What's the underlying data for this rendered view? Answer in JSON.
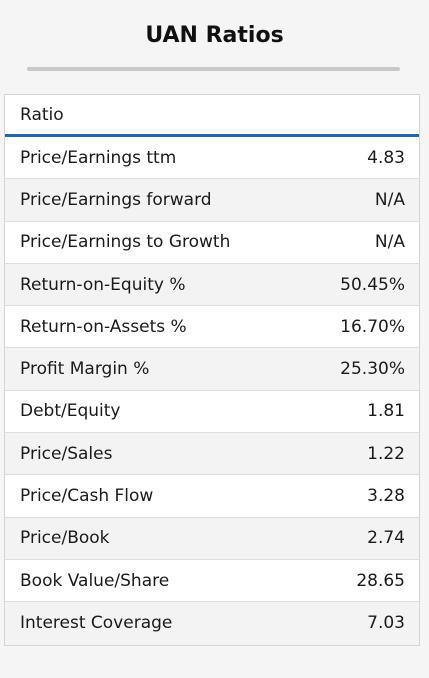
{
  "page": {
    "title": "UAN Ratios"
  },
  "table": {
    "header": "Ratio",
    "rows": [
      {
        "label": "Price/Earnings ttm",
        "value": "4.83"
      },
      {
        "label": "Price/Earnings forward",
        "value": "N/A"
      },
      {
        "label": "Price/Earnings to Growth",
        "value": "N/A"
      },
      {
        "label": "Return-on-Equity %",
        "value": "50.45%"
      },
      {
        "label": "Return-on-Assets %",
        "value": "16.70%"
      },
      {
        "label": "Profit Margin %",
        "value": "25.30%"
      },
      {
        "label": "Debt/Equity",
        "value": "1.81"
      },
      {
        "label": "Price/Sales",
        "value": "1.22"
      },
      {
        "label": "Price/Cash Flow",
        "value": "3.28"
      },
      {
        "label": "Price/Book",
        "value": "2.74"
      },
      {
        "label": "Book Value/Share",
        "value": "28.65"
      },
      {
        "label": "Interest Coverage",
        "value": "7.03"
      }
    ]
  },
  "colors": {
    "header_rule": "#2566a9",
    "title_rule": "#c9c9c9",
    "alt_row": "#f3f3f3",
    "background": "#f5f5f5"
  }
}
